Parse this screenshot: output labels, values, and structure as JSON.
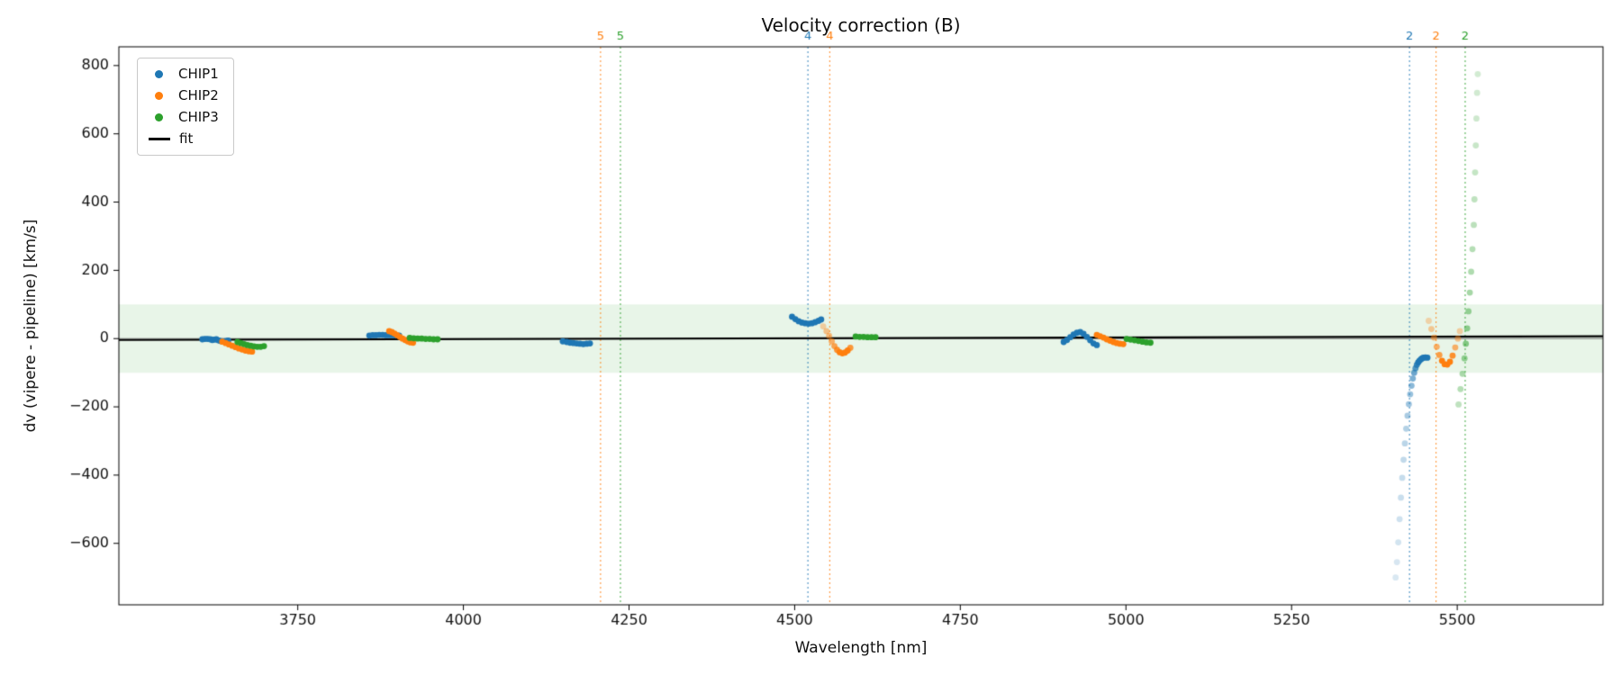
{
  "chart_data": {
    "type": "scatter",
    "title": "Velocity correction (B)",
    "xlabel": "Wavelength [nm]",
    "ylabel": "dv (vipere - pipeline) [km/s]",
    "xlim": [
      3480,
      5720
    ],
    "ylim": [
      -780,
      855
    ],
    "xticks": [
      3750,
      4000,
      4250,
      4500,
      4750,
      5000,
      5250,
      5500
    ],
    "yticks": [
      -600,
      -400,
      -200,
      0,
      200,
      400,
      600,
      800
    ],
    "grid": false,
    "marker_radius": 3.4,
    "band": {
      "ymin": -100,
      "ymax": 100,
      "color": "rgba(44,160,44,0.11)"
    },
    "zero_line": {
      "y": 0,
      "color": "#777777"
    },
    "fit_line": {
      "label": "fit",
      "color": "#000000",
      "x": [
        3480,
        5720
      ],
      "y": [
        -4,
        7
      ]
    },
    "vlines": [
      {
        "x": 4207,
        "color": "#ff7f0e",
        "label": "5"
      },
      {
        "x": 4237,
        "color": "#2ca02c",
        "label": "5"
      },
      {
        "x": 4520,
        "color": "#1f77b4",
        "label": "4"
      },
      {
        "x": 4553,
        "color": "#ff7f0e",
        "label": "4"
      },
      {
        "x": 5428,
        "color": "#1f77b4",
        "label": "2"
      },
      {
        "x": 5468,
        "color": "#ff7f0e",
        "label": "2"
      },
      {
        "x": 5512,
        "color": "#2ca02c",
        "label": "2"
      }
    ],
    "legend": {
      "position": "upper-left",
      "entries": [
        {
          "label": "CHIP1",
          "color": "#1f77b4",
          "marker": "dot"
        },
        {
          "label": "CHIP2",
          "color": "#ff7f0e",
          "marker": "dot"
        },
        {
          "label": "CHIP3",
          "color": "#2ca02c",
          "marker": "dot"
        },
        {
          "label": "fit",
          "color": "#000000",
          "marker": "line"
        }
      ]
    },
    "series": [
      {
        "name": "CHIP1",
        "color": "#1f77b4",
        "points": [
          [
            3606,
            -2
          ],
          [
            3610,
            -1
          ],
          [
            3614,
            -1
          ],
          [
            3618,
            -2
          ],
          [
            3621,
            -4
          ],
          [
            3624,
            -3
          ],
          [
            3627,
            -2
          ],
          [
            3630,
            -5
          ],
          [
            3633,
            -7
          ],
          [
            3636,
            -8
          ],
          [
            3639,
            -8
          ],
          [
            3642,
            -7
          ],
          [
            3645,
            -6
          ],
          [
            3858,
            9
          ],
          [
            3863,
            10
          ],
          [
            3868,
            10
          ],
          [
            3873,
            11
          ],
          [
            3878,
            11
          ],
          [
            3883,
            10
          ],
          [
            3888,
            10
          ],
          [
            3893,
            10
          ],
          [
            3898,
            9
          ],
          [
            3903,
            9
          ],
          [
            4150,
            -8
          ],
          [
            4156,
            -10
          ],
          [
            4161,
            -12
          ],
          [
            4166,
            -13
          ],
          [
            4171,
            -14
          ],
          [
            4176,
            -15
          ],
          [
            4181,
            -16
          ],
          [
            4186,
            -15
          ],
          [
            4191,
            -14
          ],
          [
            4496,
            64
          ],
          [
            4501,
            57
          ],
          [
            4506,
            51
          ],
          [
            4511,
            47
          ],
          [
            4516,
            45
          ],
          [
            4521,
            44
          ],
          [
            4526,
            45
          ],
          [
            4531,
            48
          ],
          [
            4536,
            52
          ],
          [
            4540,
            56
          ],
          [
            4906,
            -10
          ],
          [
            4911,
            -4
          ],
          [
            4916,
            4
          ],
          [
            4921,
            12
          ],
          [
            4926,
            17
          ],
          [
            4931,
            19
          ],
          [
            4936,
            14
          ],
          [
            4941,
            5
          ],
          [
            4946,
            -5
          ],
          [
            4951,
            -14
          ],
          [
            4956,
            -19
          ],
          [
            5455,
            -56
          ],
          [
            5452,
            -55
          ],
          [
            5449,
            -56
          ],
          [
            5447,
            -58
          ],
          [
            5445,
            -61
          ],
          [
            5443,
            -65
          ],
          [
            5441,
            -70
          ],
          [
            5439,
            -77,
            0.85
          ],
          [
            5437,
            -87,
            0.75
          ],
          [
            5435,
            -100,
            0.65
          ],
          [
            5433,
            -117,
            0.58
          ],
          [
            5431,
            -138,
            0.52
          ],
          [
            5429,
            -163,
            0.46
          ],
          [
            5427,
            -192,
            0.42
          ],
          [
            5425,
            -226,
            0.38
          ],
          [
            5423,
            -264,
            0.34
          ],
          [
            5421,
            -307,
            0.31
          ],
          [
            5419,
            -355,
            0.28
          ],
          [
            5417,
            -408,
            0.26
          ],
          [
            5415,
            -466,
            0.24
          ],
          [
            5413,
            -529,
            0.22
          ],
          [
            5411,
            -597,
            0.2
          ],
          [
            5409,
            -655,
            0.18
          ],
          [
            5407,
            -700,
            0.17
          ]
        ]
      },
      {
        "name": "CHIP2",
        "color": "#ff7f0e",
        "points": [
          [
            3636,
            -9
          ],
          [
            3641,
            -13
          ],
          [
            3646,
            -17
          ],
          [
            3651,
            -21
          ],
          [
            3656,
            -25
          ],
          [
            3661,
            -29
          ],
          [
            3666,
            -32
          ],
          [
            3671,
            -35
          ],
          [
            3676,
            -37
          ],
          [
            3681,
            -38
          ],
          [
            3888,
            22
          ],
          [
            3892,
            19
          ],
          [
            3896,
            15
          ],
          [
            3900,
            10
          ],
          [
            3904,
            5
          ],
          [
            3908,
            0
          ],
          [
            3912,
            -4
          ],
          [
            3916,
            -8
          ],
          [
            3920,
            -11
          ],
          [
            3924,
            -12
          ],
          [
            4543,
            36,
            0.35
          ],
          [
            4548,
            22,
            0.45
          ],
          [
            4552,
            8,
            0.5
          ],
          [
            4556,
            -8,
            0.6
          ],
          [
            4560,
            -22,
            0.7
          ],
          [
            4564,
            -33,
            0.85
          ],
          [
            4568,
            -40
          ],
          [
            4572,
            -43
          ],
          [
            4576,
            -41
          ],
          [
            4580,
            -35
          ],
          [
            4584,
            -27,
            0.8
          ],
          [
            4956,
            11
          ],
          [
            4961,
            7
          ],
          [
            4966,
            3
          ],
          [
            4971,
            -2
          ],
          [
            4976,
            -6
          ],
          [
            4981,
            -10
          ],
          [
            4986,
            -13
          ],
          [
            4991,
            -15
          ],
          [
            4996,
            -16
          ],
          [
            5457,
            52,
            0.3
          ],
          [
            5461,
            28,
            0.4
          ],
          [
            5465,
            3,
            0.5
          ],
          [
            5469,
            -24,
            0.6
          ],
          [
            5473,
            -48,
            0.75
          ],
          [
            5477,
            -65
          ],
          [
            5481,
            -75
          ],
          [
            5485,
            -76
          ],
          [
            5489,
            -68
          ],
          [
            5493,
            -50,
            0.85
          ],
          [
            5497,
            -26,
            0.6
          ],
          [
            5501,
            0,
            0.45
          ],
          [
            5504,
            22,
            0.35
          ]
        ]
      },
      {
        "name": "CHIP3",
        "color": "#2ca02c",
        "points": [
          [
            3659,
            -10
          ],
          [
            3664,
            -13
          ],
          [
            3669,
            -16
          ],
          [
            3674,
            -19
          ],
          [
            3679,
            -21
          ],
          [
            3684,
            -23
          ],
          [
            3689,
            -24
          ],
          [
            3694,
            -24
          ],
          [
            3699,
            -22
          ],
          [
            3919,
            2
          ],
          [
            3925,
            1
          ],
          [
            3931,
            0
          ],
          [
            3937,
            0
          ],
          [
            3943,
            -1
          ],
          [
            3949,
            -1
          ],
          [
            3955,
            -2
          ],
          [
            3961,
            -2
          ],
          [
            4592,
            6
          ],
          [
            4598,
            5
          ],
          [
            4604,
            5
          ],
          [
            4610,
            4
          ],
          [
            4616,
            4
          ],
          [
            4622,
            4
          ],
          [
            5001,
            -1
          ],
          [
            5007,
            -3
          ],
          [
            5013,
            -5
          ],
          [
            5019,
            -7
          ],
          [
            5025,
            -9
          ],
          [
            5031,
            -11
          ],
          [
            5037,
            -12
          ],
          [
            5502,
            -193,
            0.3
          ],
          [
            5505,
            -148,
            0.35
          ],
          [
            5508,
            -103,
            0.4
          ],
          [
            5511,
            -58,
            0.48
          ],
          [
            5513,
            -15,
            0.55
          ],
          [
            5515,
            30,
            0.5
          ],
          [
            5517,
            80,
            0.46
          ],
          [
            5519,
            135,
            0.42
          ],
          [
            5521,
            196,
            0.38
          ],
          [
            5523,
            262,
            0.35
          ],
          [
            5525,
            333,
            0.32
          ],
          [
            5526,
            408,
            0.3
          ],
          [
            5527,
            487,
            0.28
          ],
          [
            5528,
            566,
            0.26
          ],
          [
            5529,
            645,
            0.24
          ],
          [
            5530,
            720,
            0.22
          ],
          [
            5531,
            775,
            0.21
          ]
        ]
      }
    ]
  }
}
